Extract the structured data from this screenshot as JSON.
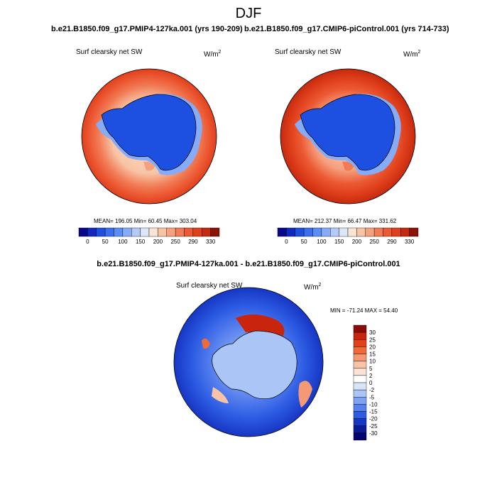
{
  "page": {
    "title": "DJF",
    "left_title": "b.e21.B1850.f09_g17.PMIP4-127ka.001 (yrs 190-209)",
    "right_title": "b.e21.B1850.f09_g17.CMIP6-piControl.001 (yrs 714-733)",
    "diff_title": "b.e21.B1850.f09_g17.PMIP4-127ka.001 - b.e21.B1850.f09_g17.CMIP6-piControl.001",
    "variable": "Surf clearsky net SW",
    "units_base": "W/m",
    "units_exp": "2"
  },
  "chart_data": [
    {
      "type": "heatmap",
      "projection": "south polar stereographic",
      "title": "b.e21.B1850.f09_g17.PMIP4-127ka.001 (yrs 190-209)",
      "variable": "Surf clearsky net SW",
      "units": "W/m2",
      "stats": {
        "text": "MEAN= 196.05  Min=  60.45  Max= 303.04",
        "mean": 196.05,
        "min": 60.45,
        "max": 303.04
      },
      "colorbar": {
        "orientation": "horizontal",
        "colors": [
          "#08088c",
          "#1028c0",
          "#1d4fe0",
          "#3a70f0",
          "#5a8ff5",
          "#86acf7",
          "#b3cbf8",
          "#dbe6fb",
          "#fbe4d3",
          "#f8c4a6",
          "#f5a07e",
          "#f17b55",
          "#ec5a34",
          "#e0401c",
          "#c62a0e",
          "#8c1203"
        ],
        "tick_labels": [
          "0",
          "50",
          "100",
          "150",
          "200",
          "250",
          "290",
          "330"
        ]
      }
    },
    {
      "type": "heatmap",
      "projection": "south polar stereographic",
      "title": "b.e21.B1850.f09_g17.CMIP6-piControl.001 (yrs 714-733)",
      "variable": "Surf clearsky net SW",
      "units": "W/m2",
      "stats": {
        "text": "MEAN= 212.37  Min=  66.47  Max= 331.62",
        "mean": 212.37,
        "min": 66.47,
        "max": 331.62
      },
      "colorbar": {
        "orientation": "horizontal",
        "colors": [
          "#08088c",
          "#1028c0",
          "#1d4fe0",
          "#3a70f0",
          "#5a8ff5",
          "#86acf7",
          "#b3cbf8",
          "#dbe6fb",
          "#fbe4d3",
          "#f8c4a6",
          "#f5a07e",
          "#f17b55",
          "#ec5a34",
          "#e0401c",
          "#c62a0e",
          "#8c1203"
        ],
        "tick_labels": [
          "0",
          "50",
          "100",
          "150",
          "200",
          "250",
          "290",
          "330"
        ]
      }
    },
    {
      "type": "heatmap",
      "projection": "south polar stereographic",
      "title": "b.e21.B1850.f09_g17.PMIP4-127ka.001 - b.e21.B1850.f09_g17.CMIP6-piControl.001",
      "variable": "Surf clearsky net SW",
      "units": "W/m2",
      "stats": {
        "text": "MIN = -71.24 MAX =  54.40",
        "min": -71.24,
        "max": 54.4
      },
      "colorbar": {
        "orientation": "vertical",
        "colors": [
          "#8b0a0a",
          "#c8240e",
          "#e3411c",
          "#f06a3a",
          "#f59874",
          "#f9c3a6",
          "#fbe2d4",
          "#ffffff",
          "#d8e4fa",
          "#aac5f6",
          "#7ea3f3",
          "#5680ee",
          "#2d5ce3",
          "#1636c4",
          "#0b1a97",
          "#05056e"
        ],
        "tick_labels": [
          "30",
          "25",
          "20",
          "15",
          "10",
          "5",
          "2",
          "0",
          "-2",
          "-5",
          "-10",
          "-15",
          "-20",
          "-25",
          "-30"
        ]
      }
    }
  ]
}
